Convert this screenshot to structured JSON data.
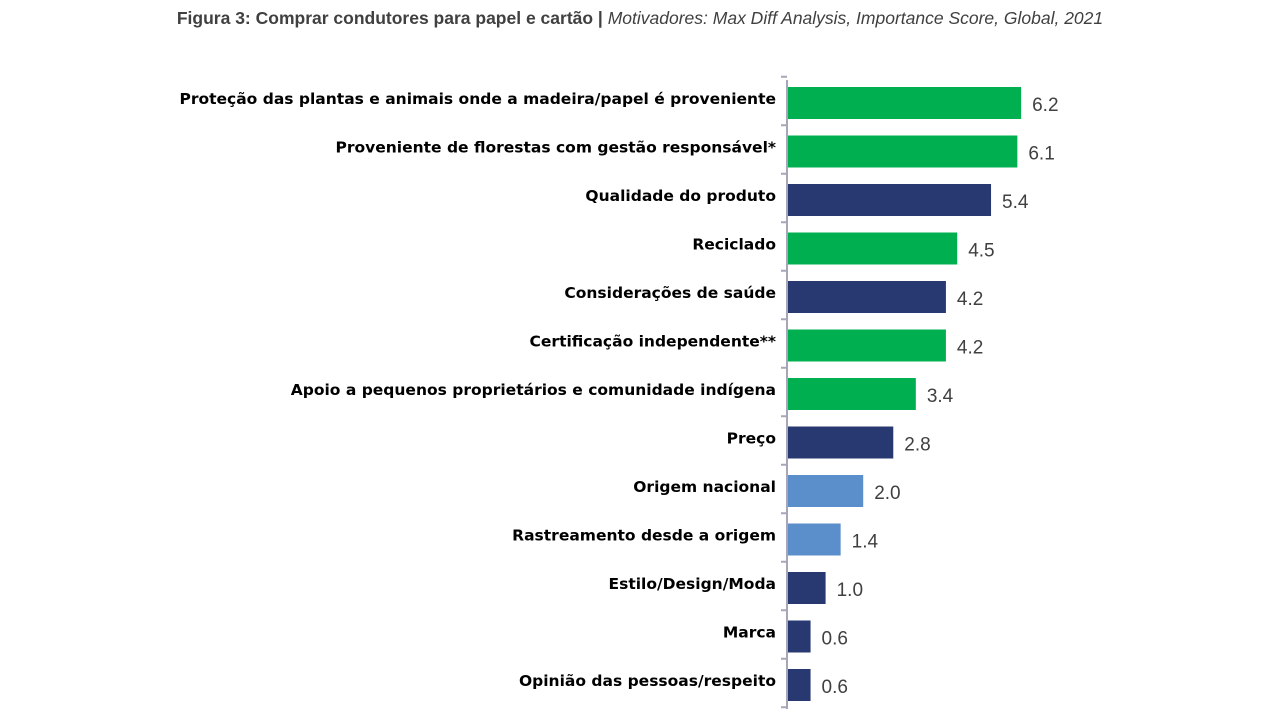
{
  "chart_data": {
    "type": "bar",
    "orientation": "horizontal",
    "title": "Figura 3: Comprar condutores para papel e cartão |",
    "subtitle": "Motivadores: Max Diff Analysis, Importance Score, Global, 2021",
    "xlabel": "",
    "ylabel": "",
    "xlim": [
      0,
      6.5
    ],
    "grid": false,
    "categories": [
      "Proteção das plantas e animais onde a madeira/papel  é proveniente",
      "Proveniente de florestas com gestão responsável*",
      "Qualidade  do produto",
      "Reciclado",
      "Considerações  de saúde",
      "Certificação  independente**",
      "Apoio a pequenos proprietários  e comunidade  indígena",
      "Preço",
      "Origem nacional",
      "Rastreamento  desde a origem",
      "Estilo/Design/Moda",
      "Marca",
      "Opinião das pessoas/respeito"
    ],
    "values": [
      6.2,
      6.1,
      5.4,
      4.5,
      4.2,
      4.2,
      3.4,
      2.8,
      2.0,
      1.4,
      1.0,
      0.6,
      0.6
    ],
    "value_labels": [
      "6.2",
      "6.1",
      "5.4",
      "4.5",
      "4.2",
      "4.2",
      "3.4",
      "2.8",
      "2.0",
      "1.4",
      "1.0",
      "0.6",
      "0.6"
    ],
    "groups": [
      "green",
      "green",
      "navy",
      "green",
      "navy",
      "green",
      "green",
      "navy",
      "light",
      "light",
      "navy",
      "navy",
      "navy"
    ],
    "colors": {
      "green": "#00b050",
      "navy": "#283870",
      "light": "#5b8fcb"
    }
  }
}
